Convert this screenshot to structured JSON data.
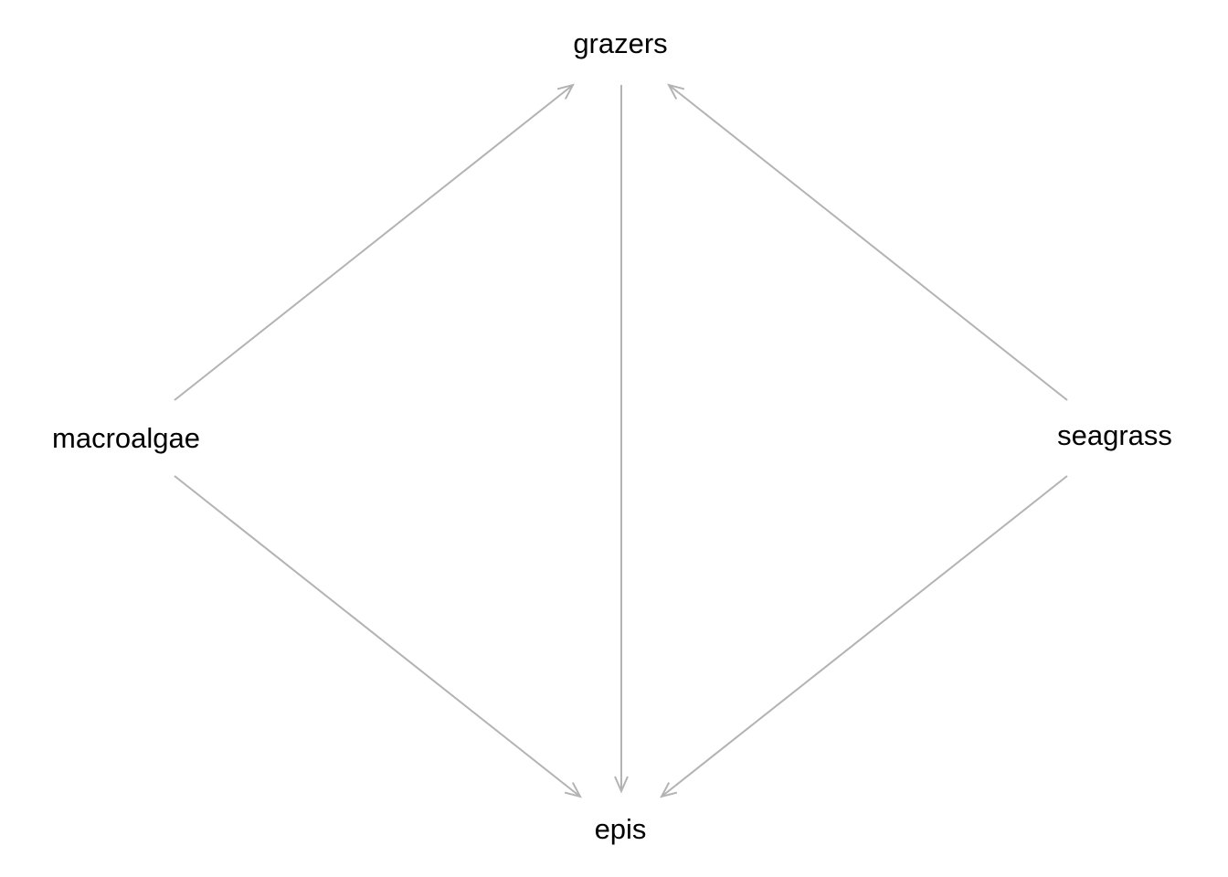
{
  "diagram": {
    "type": "directed-graph",
    "edge_color": "#b3b3b3",
    "text_color": "#000000",
    "nodes": [
      {
        "id": "grazers",
        "label": "grazers"
      },
      {
        "id": "macroalgae",
        "label": "macroalgae"
      },
      {
        "id": "seagrass",
        "label": "seagrass"
      },
      {
        "id": "epis",
        "label": "epis"
      }
    ],
    "edges": [
      {
        "from": "macroalgae",
        "to": "grazers"
      },
      {
        "from": "seagrass",
        "to": "grazers"
      },
      {
        "from": "grazers",
        "to": "epis"
      },
      {
        "from": "macroalgae",
        "to": "epis"
      },
      {
        "from": "seagrass",
        "to": "epis"
      }
    ]
  }
}
